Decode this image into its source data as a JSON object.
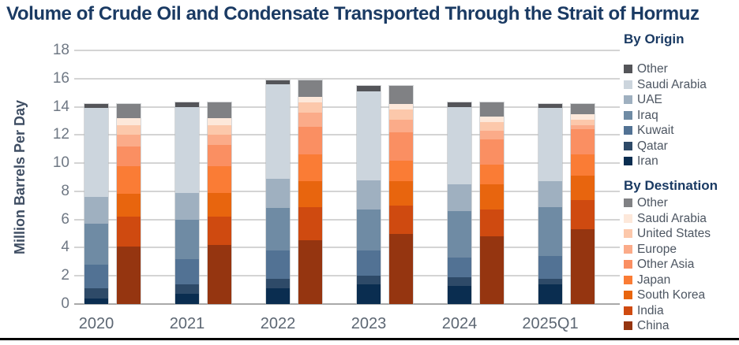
{
  "title_color": "#1a3a63",
  "chart_data": {
    "type": "bar",
    "stacked": true,
    "title": "Volume of Crude Oil and Condensate Transported Through the Strait of Hormuz",
    "ylabel": "Million Barrels Per Day",
    "unit": "million barrels per day",
    "ylim": [
      0,
      18
    ],
    "ytick_step": 2,
    "grid": "horizontal",
    "legend_position": "right",
    "categories": [
      "2020",
      "2021",
      "2022",
      "2023",
      "2024",
      "2025Q1"
    ],
    "groups": [
      {
        "name": "By Origin",
        "stack_order": "bottom-to-top",
        "series": [
          {
            "name": "Iran",
            "color": "#0a2d50",
            "values": [
              0.4,
              0.7,
              1.1,
              1.4,
              1.3,
              1.4
            ]
          },
          {
            "name": "Qatar",
            "color": "#2e4a68",
            "values": [
              0.7,
              0.7,
              0.7,
              0.6,
              0.6,
              0.4
            ]
          },
          {
            "name": "Kuwait",
            "color": "#527294",
            "values": [
              1.7,
              1.8,
              2.0,
              1.8,
              1.4,
              1.6
            ]
          },
          {
            "name": "Iraq",
            "color": "#6f8ba4",
            "values": [
              2.9,
              2.8,
              3.0,
              2.9,
              3.3,
              3.5
            ]
          },
          {
            "name": "UAE",
            "color": "#9fb0c0",
            "values": [
              1.9,
              1.9,
              2.1,
              2.1,
              1.9,
              1.8
            ]
          },
          {
            "name": "Saudi Arabia",
            "color": "#ccd5dd",
            "values": [
              6.3,
              6.1,
              6.7,
              6.3,
              5.5,
              5.2
            ]
          },
          {
            "name": "Other",
            "color": "#545559",
            "values": [
              0.3,
              0.3,
              0.3,
              0.4,
              0.3,
              0.3
            ]
          }
        ]
      },
      {
        "name": "By Destination",
        "stack_order": "bottom-to-top",
        "series": [
          {
            "name": "China",
            "color": "#953510",
            "values": [
              4.1,
              4.2,
              4.5,
              5.0,
              4.8,
              5.3
            ]
          },
          {
            "name": "India",
            "color": "#cf4a10",
            "values": [
              2.1,
              2.0,
              2.4,
              2.0,
              1.9,
              2.1
            ]
          },
          {
            "name": "South Korea",
            "color": "#e8650e",
            "values": [
              1.6,
              1.7,
              1.8,
              1.7,
              1.8,
              1.7
            ]
          },
          {
            "name": "Japan",
            "color": "#fa7c35",
            "values": [
              2.0,
              1.9,
              1.9,
              1.5,
              1.4,
              1.5
            ]
          },
          {
            "name": "Other Asia",
            "color": "#fa8f62",
            "values": [
              1.4,
              1.5,
              2.0,
              2.0,
              1.8,
              1.8
            ]
          },
          {
            "name": "Europe",
            "color": "#fbab89",
            "values": [
              0.8,
              0.7,
              1.0,
              0.9,
              0.6,
              0.3
            ]
          },
          {
            "name": "United States",
            "color": "#fcc8ab",
            "values": [
              0.7,
              0.7,
              0.7,
              0.7,
              0.6,
              0.4
            ]
          },
          {
            "name": "Saudi Arabia",
            "color": "#fde8da",
            "values": [
              0.5,
              0.5,
              0.4,
              0.4,
              0.4,
              0.4
            ]
          },
          {
            "name": "Other",
            "color": "#808184",
            "values": [
              1.0,
              1.1,
              1.2,
              1.3,
              1.0,
              0.7
            ]
          }
        ]
      }
    ],
    "totals_by_year": [
      14.2,
      14.3,
      15.9,
      15.5,
      14.3,
      14.2
    ],
    "legend_note": "legend lists series top-of-stack first"
  }
}
